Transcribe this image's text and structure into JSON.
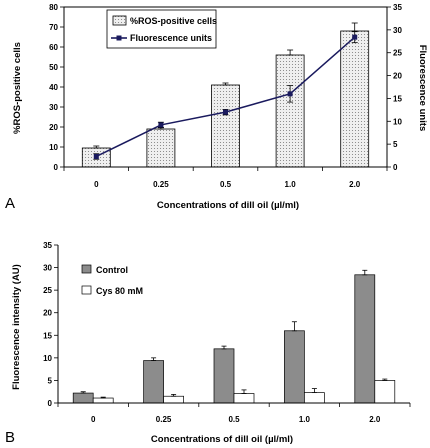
{
  "chart_data": [
    {
      "type": "bar+line",
      "panel_label": "A",
      "categories": [
        "0",
        "0.25",
        "0.5",
        "1.0",
        "2.0"
      ],
      "xlabel": "Concentrations of dill oil (µl/ml)",
      "ylabel": "%ROS-positive cells",
      "y2label": "Fluorescence units",
      "ylim": [
        0,
        80
      ],
      "yticks": [
        "0",
        "10",
        "20",
        "30",
        "40",
        "50",
        "60",
        "70",
        "80"
      ],
      "y2lim": [
        0,
        35
      ],
      "y2ticks": [
        "0",
        "5",
        "10",
        "15",
        "20",
        "25",
        "30",
        "35"
      ],
      "legend_position": "top-left",
      "series": [
        {
          "name": "%ROS-positive cells",
          "kind": "bar",
          "axis": "left",
          "fill": "#ebebeb",
          "pattern": "dots",
          "values": [
            9.5,
            19,
            41,
            56,
            68
          ],
          "errors": [
            1,
            0.8,
            1,
            2.5,
            4
          ]
        },
        {
          "name": "Fluorescence units",
          "kind": "line",
          "axis": "right",
          "color": "#1a1a5e",
          "values": [
            2.3,
            9.2,
            12,
            16,
            28.4
          ],
          "errors": [
            0.6,
            0.6,
            0.6,
            1.8,
            1.2
          ]
        }
      ]
    },
    {
      "type": "bar",
      "panel_label": "B",
      "categories": [
        "0",
        "0.25",
        "0.5",
        "1.0",
        "2.0"
      ],
      "xlabel": "Concentrations of dill oil (µl/ml)",
      "ylabel": "Fluorescence intensity (AU)",
      "ylim": [
        0,
        35
      ],
      "yticks": [
        "0",
        "5",
        "10",
        "15",
        "20",
        "25",
        "30",
        "35"
      ],
      "legend_position": "top-left",
      "series": [
        {
          "name": "Control",
          "fill": "#8c8c8c",
          "values": [
            2.2,
            9.4,
            12,
            16,
            28.4
          ],
          "errors": [
            0.3,
            0.6,
            0.6,
            2,
            1
          ]
        },
        {
          "name": "Cys 80 mM",
          "fill": "#ffffff",
          "values": [
            1.1,
            1.5,
            2.1,
            2.3,
            5
          ],
          "errors": [
            0.2,
            0.4,
            0.8,
            0.9,
            0.3
          ]
        }
      ]
    }
  ]
}
